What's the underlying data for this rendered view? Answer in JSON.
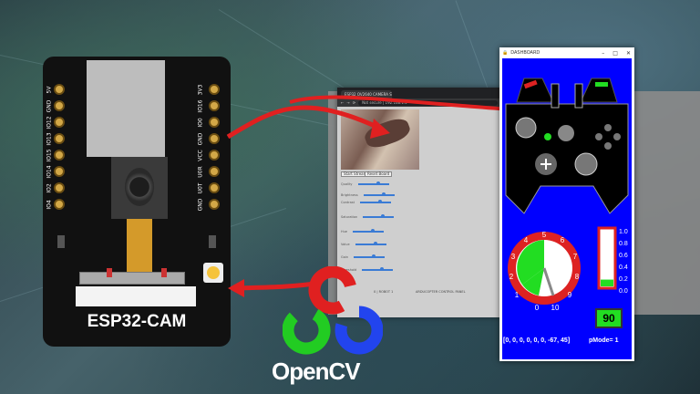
{
  "board": {
    "label": "ESP32-CAM",
    "pins_left": [
      "5V",
      "GND",
      "IO12",
      "IO13",
      "IO15",
      "IO14",
      "IO2",
      "IO4"
    ],
    "pins_right": [
      "3V3",
      "IO16",
      "IO0",
      "GND",
      "VCC",
      "U0R",
      "U0T",
      "GND"
    ]
  },
  "browser": {
    "tab_title": "ESP32 OV2640 CAMERA STREAM",
    "address_prefix": "Not secure",
    "address": "192.168.1.5",
    "start_stream": "Start Stream",
    "reset_board": "Reset Board",
    "fields": [
      "Quality",
      "Brightness",
      "Contrast",
      "Saturation",
      "Hue",
      "Value",
      "Gain",
      "Threshold"
    ],
    "footer_left": "0 | ROBOT 1",
    "footer_right": "ARDUCOPTER CONTROL PANEL"
  },
  "dashboard": {
    "title": "DASHBOARD",
    "value_box": "90",
    "array_readout": "[0, 0, 0, 0, 0, 0, -67, 45]",
    "pmode": "pMode= 1",
    "dial_numbers": [
      "0",
      "1",
      "2",
      "3",
      "4",
      "5",
      "6",
      "7",
      "8",
      "9",
      "10"
    ],
    "level_ticks": [
      "1.0",
      "0.8",
      "0.6",
      "0.4",
      "0.2",
      "0.0"
    ],
    "level_value": 0.12,
    "colors": {
      "bg": "#0000ff",
      "accent": "#22dd22",
      "dial": "#dd2222"
    }
  },
  "opencv": {
    "label": "OpenCV"
  }
}
